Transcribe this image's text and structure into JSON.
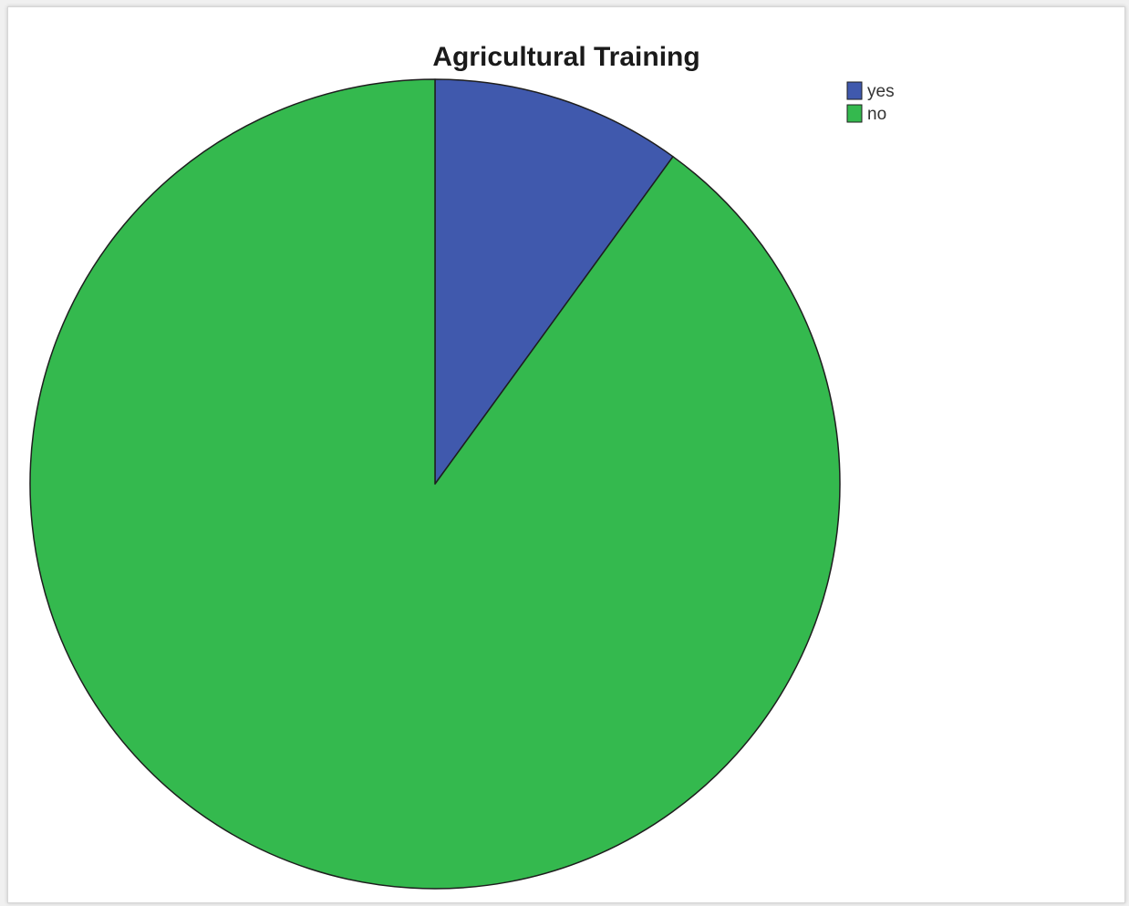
{
  "chart_data": {
    "type": "pie",
    "title": "Agricultural Training",
    "categories": [
      "yes",
      "no"
    ],
    "values": [
      10,
      90
    ],
    "colors": [
      "#4059ad",
      "#34b94e"
    ],
    "start_angle_deg": 0,
    "direction": "clockwise",
    "legend": {
      "position": "top-right",
      "items": [
        {
          "label": "yes",
          "color": "#4059ad"
        },
        {
          "label": "no",
          "color": "#34b94e"
        }
      ]
    }
  }
}
